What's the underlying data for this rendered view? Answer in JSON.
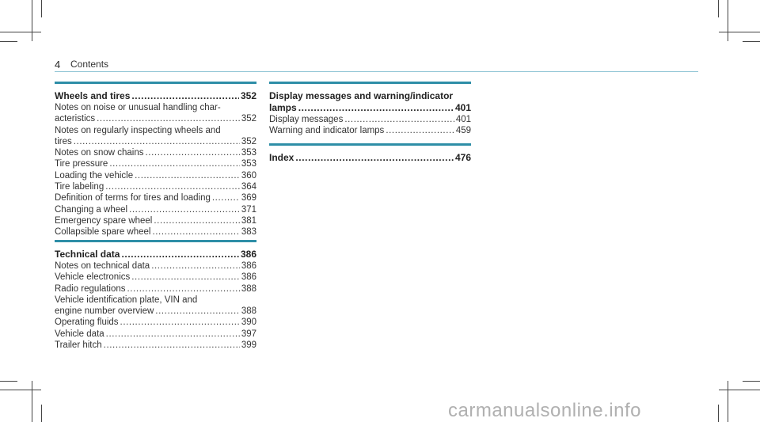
{
  "header": {
    "page_number": "4",
    "title": "Contents"
  },
  "sections": {
    "wheels": {
      "main": {
        "text": "Wheels and tires",
        "page": "352"
      },
      "entries": [
        {
          "pre": "Notes on noise or unusual handling char-",
          "text": "acteristics",
          "page": "352"
        },
        {
          "pre": "Notes on regularly inspecting wheels and",
          "text": "tires",
          "page": "352"
        },
        {
          "text": "Notes on snow chains",
          "page": "353"
        },
        {
          "text": "Tire pressure",
          "page": "353"
        },
        {
          "text": "Loading the vehicle",
          "page": "360"
        },
        {
          "text": "Tire labeling",
          "page": "364"
        },
        {
          "text": "Definition of terms for tires and loading",
          "page": "369"
        },
        {
          "text": "Changing a wheel",
          "page": "371"
        },
        {
          "text": "Emergency spare wheel",
          "page": "381"
        },
        {
          "text": "Collapsible spare wheel",
          "page": "383"
        }
      ]
    },
    "technical": {
      "main": {
        "text": "Technical data",
        "page": "386"
      },
      "entries": [
        {
          "text": "Notes on technical data",
          "page": "386"
        },
        {
          "text": "Vehicle electronics",
          "page": "386"
        },
        {
          "text": "Radio regulations",
          "page": "388"
        },
        {
          "pre": "Vehicle identification plate, VIN and",
          "text": "engine number overview",
          "page": "388"
        },
        {
          "text": "Operating fluids",
          "page": "390"
        },
        {
          "text": "Vehicle data",
          "page": "397"
        },
        {
          "text": "Trailer hitch",
          "page": "399"
        }
      ]
    },
    "display": {
      "main": {
        "pre": "Display messages and warning/indicator",
        "text": "lamps",
        "page": "401"
      },
      "entries": [
        {
          "text": "Display messages",
          "page": "401"
        },
        {
          "text": "Warning and indicator lamps",
          "page": "459"
        }
      ]
    },
    "index": {
      "main": {
        "text": "Index",
        "page": "476"
      }
    }
  },
  "watermark": "carmanualsonline.info"
}
